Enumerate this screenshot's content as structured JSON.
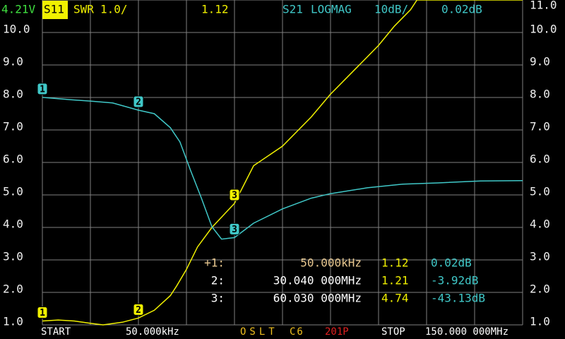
{
  "chart_data": {
    "type": "line",
    "battery": "4.21V",
    "xlim": [
      0.05,
      150
    ],
    "ylim": [
      1,
      11
    ],
    "yticks": [
      {
        "value": 1,
        "label": "1.0"
      },
      {
        "value": 2,
        "label": "2.0"
      },
      {
        "value": 3,
        "label": "3.0"
      },
      {
        "value": 4,
        "label": "4.0"
      },
      {
        "value": 5,
        "label": "5.0"
      },
      {
        "value": 6,
        "label": "6.0"
      },
      {
        "value": 7,
        "label": "7.0"
      },
      {
        "value": 8,
        "label": "8.0"
      },
      {
        "value": 9,
        "label": "9.0"
      },
      {
        "value": 10,
        "label": "10.0"
      }
    ],
    "yticks_right": [
      {
        "value": 1,
        "label": "1.0"
      },
      {
        "value": 2,
        "label": "2.0"
      },
      {
        "value": 3,
        "label": "3.0"
      },
      {
        "value": 4,
        "label": "4.0"
      },
      {
        "value": 5,
        "label": "5.0"
      },
      {
        "value": 6,
        "label": "6.0"
      },
      {
        "value": 7,
        "label": "7.0"
      },
      {
        "value": 8,
        "label": "8.0"
      },
      {
        "value": 9,
        "label": "9.0"
      },
      {
        "value": 10,
        "label": "10.0"
      },
      {
        "value": 11,
        "label": "11.0"
      }
    ],
    "y2lim": [
      -70,
      30
    ],
    "grid": true,
    "series": [
      {
        "name": "S11",
        "format": "SWR",
        "scale": "1.0/",
        "readout": "1.12",
        "color": "#f0f000",
        "x": [
          0.05,
          5,
          10,
          15,
          19,
          25,
          30.04,
          35,
          40,
          42,
          45,
          48.5,
          53,
          60.03,
          66,
          75,
          84,
          90,
          97,
          105,
          110,
          115,
          117,
          130,
          150
        ],
        "values": [
          1.12,
          1.15,
          1.12,
          1.05,
          1.0,
          1.08,
          1.21,
          1.45,
          1.9,
          2.2,
          2.7,
          3.4,
          4.0,
          4.74,
          5.9,
          6.5,
          7.4,
          8.1,
          8.8,
          9.6,
          10.2,
          10.7,
          11.0,
          11.0,
          11.0
        ]
      },
      {
        "name": "S21",
        "format": "LOGMAG",
        "scale": "10dB/",
        "readout": "0.02dB",
        "color": "#40c8c8",
        "axis": "y2",
        "x": [
          0.05,
          9,
          15,
          22,
          30.04,
          35,
          40,
          43,
          46.3,
          49.7,
          53,
          56,
          60.03,
          66,
          75,
          84,
          90,
          101.5,
          112.5,
          123.5,
          136.8,
          150
        ],
        "values": [
          0.02,
          -0.7,
          -1.1,
          -1.7,
          -3.92,
          -5,
          -9.3,
          -13.7,
          -22.4,
          -31,
          -39.8,
          -43.6,
          -43.13,
          -38.7,
          -34.3,
          -31,
          -29.6,
          -27.8,
          -26.7,
          -26.3,
          -25.7,
          -25.6
        ]
      }
    ],
    "markers": [
      {
        "label": "1",
        "row_label": "+1:",
        "x": 0.05,
        "freq_label": "50.000kHz",
        "swr": 1.12,
        "swr_label": "1.12",
        "s21": 0.02,
        "s21_label": "0.02dB"
      },
      {
        "label": "2",
        "row_label": "2:",
        "x": 30.04,
        "freq_label": "30.040 000MHz",
        "swr": 1.21,
        "swr_label": "1.21",
        "s21": -3.92,
        "s21_label": "-3.92dB"
      },
      {
        "label": "3",
        "row_label": "3:",
        "x": 60.03,
        "freq_label": "60.030 000MHz",
        "swr": 4.74,
        "swr_label": "4.74",
        "s21": -43.13,
        "s21_label": "-43.13dB"
      }
    ],
    "start": "START",
    "start_freq": "50.000kHz",
    "cal": "OSLT",
    "cal_slot": "C6",
    "points": "201P",
    "stop": "STOP",
    "stop_freq": "150.000 000MHz"
  }
}
